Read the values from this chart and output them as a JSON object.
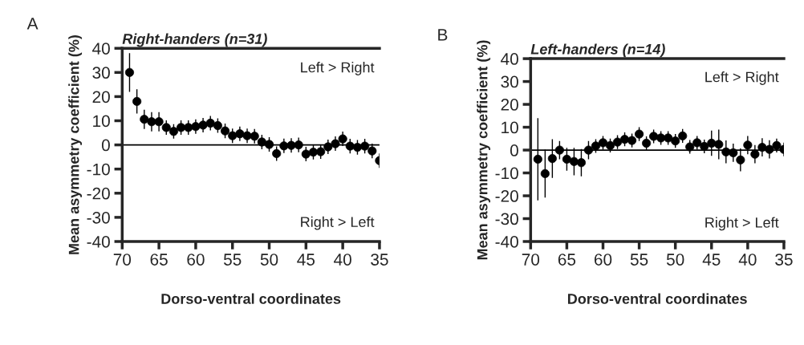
{
  "chart_data": [
    {
      "type": "scatter",
      "title": "Right-handers (n=31)",
      "xlabel": "Dorso-ventral coordinates",
      "ylabel": "Mean asymmetry coefficient (%)",
      "annotations": [
        "A",
        "Left > Right",
        "Right > Left"
      ],
      "x": [
        69,
        68,
        67,
        66,
        65,
        64,
        63,
        62,
        61,
        60,
        59,
        58,
        57,
        56,
        55,
        54,
        53,
        52,
        51,
        50,
        49,
        48,
        47,
        46,
        45,
        44,
        43,
        42,
        41,
        40,
        39,
        38,
        37,
        36,
        35
      ],
      "values": [
        30,
        18,
        10.6,
        9.6,
        9.6,
        7.2,
        5.6,
        7.2,
        7.2,
        7.6,
        8.2,
        9,
        8,
        5.8,
        3.8,
        4.6,
        3.8,
        3.6,
        1.2,
        0.2,
        -3.6,
        -0.4,
        -0.2,
        0,
        -3.8,
        -3,
        -2.8,
        -0.8,
        0.5,
        2.5,
        -0.5,
        -1,
        -0.5,
        -2.5,
        -6.5
      ],
      "errors": [
        8,
        5,
        4,
        4,
        4,
        3,
        3,
        3,
        3,
        3,
        3,
        3,
        3,
        3,
        3,
        3,
        3,
        3,
        3,
        3,
        3,
        3,
        3,
        3,
        3,
        3,
        3,
        3,
        3,
        3,
        3,
        3,
        3,
        3,
        3
      ],
      "color": "#000000",
      "marker": "circle",
      "xlim": [
        70,
        35
      ],
      "ylim": [
        -40,
        40
      ],
      "xticks": [
        70,
        65,
        60,
        55,
        50,
        45,
        40,
        35
      ],
      "yticks": [
        -40,
        -30,
        -20,
        -10,
        0,
        10,
        20,
        30,
        40
      ],
      "ref_lines": [
        {
          "axis": "y",
          "value": 0,
          "color": "#000000"
        }
      ],
      "grid": false
    },
    {
      "type": "scatter",
      "title": "Left-handers (n=14)",
      "xlabel": "Dorso-ventral coordinates",
      "ylabel": "Mean asymmetry coefficient (%)",
      "annotations": [
        "B",
        "Left > Right",
        "Right > Left"
      ],
      "x": [
        69,
        68,
        67,
        66,
        65,
        64,
        63,
        62,
        61,
        60,
        59,
        58,
        57,
        56,
        55,
        54,
        53,
        52,
        51,
        50,
        49,
        48,
        47,
        46,
        45,
        44,
        43,
        42,
        41,
        40,
        39,
        38,
        37,
        36,
        35
      ],
      "values": [
        -4,
        -10.3,
        -3.7,
        0,
        -4,
        -5,
        -5.5,
        0,
        1.8,
        3.2,
        2,
        3.5,
        4.7,
        4.2,
        7,
        3,
        6,
        5.3,
        5.3,
        4,
        6.2,
        1.4,
        3.2,
        1.6,
        3,
        2.5,
        -0.8,
        -1.2,
        -4.3,
        2.2,
        -1.8,
        1.2,
        0.3,
        2,
        0.3
      ],
      "errors": [
        18,
        10.5,
        8.5,
        4,
        5,
        6,
        6,
        4,
        3,
        3,
        3,
        3,
        3,
        3,
        3,
        3,
        3,
        3,
        3,
        3,
        3,
        3,
        3,
        3,
        5.5,
        6.5,
        5,
        4,
        5,
        4,
        4,
        4,
        4,
        3,
        3
      ],
      "color": "#000000",
      "marker": "circle",
      "xlim": [
        70,
        35
      ],
      "ylim": [
        -40,
        40
      ],
      "xticks": [
        70,
        65,
        60,
        55,
        50,
        45,
        40,
        35
      ],
      "yticks": [
        -40,
        -30,
        -20,
        -10,
        0,
        10,
        20,
        30,
        40
      ],
      "ref_lines": [
        {
          "axis": "y",
          "value": 0,
          "color": "#000000"
        }
      ],
      "grid": false
    }
  ]
}
